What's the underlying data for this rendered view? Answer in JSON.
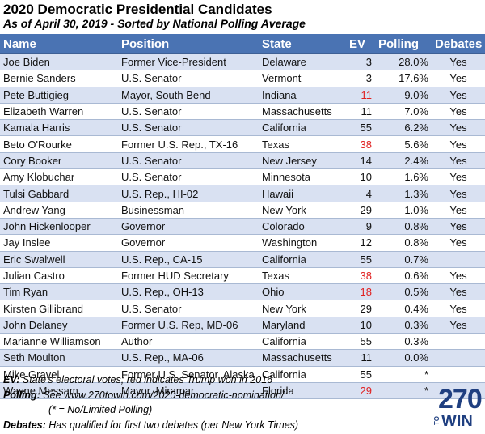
{
  "header": {
    "title": "2020 Democratic Presidential Candidates",
    "subtitle": "As of April 30, 2019 - Sorted by National Polling Average"
  },
  "columns": [
    "Name",
    "Position",
    "State",
    "EV",
    "Polling",
    "Debates"
  ],
  "rows": [
    {
      "name": "Joe Biden",
      "position": "Former Vice-President",
      "state": "Delaware",
      "ev": "3",
      "trump": false,
      "polling": "28.0%",
      "debates": "Yes"
    },
    {
      "name": "Bernie Sanders",
      "position": "U.S. Senator",
      "state": "Vermont",
      "ev": "3",
      "trump": false,
      "polling": "17.6%",
      "debates": "Yes"
    },
    {
      "name": "Pete Buttigieg",
      "position": "Mayor, South Bend",
      "state": "Indiana",
      "ev": "11",
      "trump": true,
      "polling": "9.0%",
      "debates": "Yes"
    },
    {
      "name": "Elizabeth Warren",
      "position": "U.S. Senator",
      "state": "Massachusetts",
      "ev": "11",
      "trump": false,
      "polling": "7.0%",
      "debates": "Yes"
    },
    {
      "name": "Kamala Harris",
      "position": "U.S. Senator",
      "state": "California",
      "ev": "55",
      "trump": false,
      "polling": "6.2%",
      "debates": "Yes"
    },
    {
      "name": "Beto O'Rourke",
      "position": "Former U.S. Rep., TX-16",
      "state": "Texas",
      "ev": "38",
      "trump": true,
      "polling": "5.6%",
      "debates": "Yes"
    },
    {
      "name": "Cory Booker",
      "position": "U.S. Senator",
      "state": "New Jersey",
      "ev": "14",
      "trump": false,
      "polling": "2.4%",
      "debates": "Yes"
    },
    {
      "name": "Amy Klobuchar",
      "position": "U.S. Senator",
      "state": "Minnesota",
      "ev": "10",
      "trump": false,
      "polling": "1.6%",
      "debates": "Yes"
    },
    {
      "name": "Tulsi Gabbard",
      "position": "U.S. Rep., HI-02",
      "state": "Hawaii",
      "ev": "4",
      "trump": false,
      "polling": "1.3%",
      "debates": "Yes"
    },
    {
      "name": "Andrew Yang",
      "position": "Businessman",
      "state": "New York",
      "ev": "29",
      "trump": false,
      "polling": "1.0%",
      "debates": "Yes"
    },
    {
      "name": "John Hickenlooper",
      "position": "Governor",
      "state": "Colorado",
      "ev": "9",
      "trump": false,
      "polling": "0.8%",
      "debates": "Yes"
    },
    {
      "name": "Jay Inslee",
      "position": "Governor",
      "state": "Washington",
      "ev": "12",
      "trump": false,
      "polling": "0.8%",
      "debates": "Yes"
    },
    {
      "name": "Eric Swalwell",
      "position": "U.S. Rep., CA-15",
      "state": "California",
      "ev": "55",
      "trump": false,
      "polling": "0.7%",
      "debates": ""
    },
    {
      "name": "Julian Castro",
      "position": "Former HUD Secretary",
      "state": "Texas",
      "ev": "38",
      "trump": true,
      "polling": "0.6%",
      "debates": "Yes"
    },
    {
      "name": "Tim Ryan",
      "position": "U.S. Rep., OH-13",
      "state": "Ohio",
      "ev": "18",
      "trump": true,
      "polling": "0.5%",
      "debates": "Yes"
    },
    {
      "name": "Kirsten Gillibrand",
      "position": "U.S. Senator",
      "state": "New York",
      "ev": "29",
      "trump": false,
      "polling": "0.4%",
      "debates": "Yes"
    },
    {
      "name": "John Delaney",
      "position": "Former U.S. Rep, MD-06",
      "state": "Maryland",
      "ev": "10",
      "trump": false,
      "polling": "0.3%",
      "debates": "Yes"
    },
    {
      "name": "Marianne Williamson",
      "position": "Author",
      "state": "California",
      "ev": "55",
      "trump": false,
      "polling": "0.3%",
      "debates": ""
    },
    {
      "name": "Seth Moulton",
      "position": "U.S. Rep., MA-06",
      "state": "Massachusetts",
      "ev": "11",
      "trump": false,
      "polling": "0.0%",
      "debates": ""
    },
    {
      "name": "Mike Gravel",
      "position": "Former U.S. Senator, Alaska",
      "state": "California",
      "ev": "55",
      "trump": false,
      "polling": "*",
      "debates": ""
    },
    {
      "name": "Wayne Messam",
      "position": "Mayor, Miramar",
      "state": "Florida",
      "ev": "29",
      "trump": true,
      "polling": "*",
      "debates": ""
    }
  ],
  "footer": {
    "ev_label": "EV:",
    "ev_text": "State's electoral votes; red indicates Trump won in 2016",
    "polling_label": "Polling:",
    "polling_text": "See www.270towin.com/2020-democratic-nomination/",
    "polling_note": "(* = No/Limited Polling)",
    "debates_label": "Debates:",
    "debates_text": "Has qualified for first two debates (per New York Times)"
  },
  "logo": {
    "top": "270",
    "side": "TO",
    "bottom": "WIN"
  },
  "colors": {
    "header_bg": "#4a73b3",
    "band": "#d9e1f2",
    "trump_red": "#e02020",
    "logo": "#1f3f80"
  }
}
